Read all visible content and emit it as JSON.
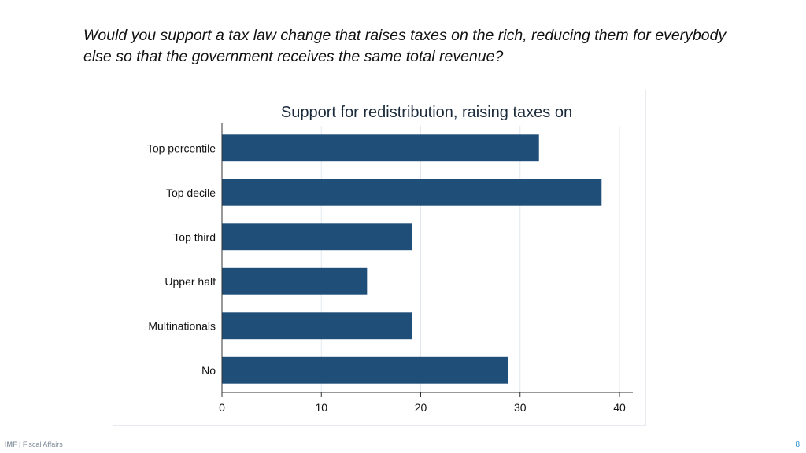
{
  "slide": {
    "question": "Would you support a tax law change that raises taxes on the rich, reducing them for everybody else so that the government receives the same total revenue?",
    "footer_brand": "IMF",
    "footer_separator": " | ",
    "footer_department": "Fiscal Affairs",
    "page_number": "8"
  },
  "colors": {
    "bar": "#1f4e79",
    "grid": "#e2e8ee",
    "axis": "#333333"
  },
  "chart_data": {
    "type": "bar",
    "orientation": "horizontal",
    "title": "Support for redistribution, raising taxes on",
    "categories": [
      "Top percentile",
      "Top decile",
      "Top third",
      "Upper half",
      "Multinationals",
      "No"
    ],
    "values": [
      31.9,
      38.2,
      19.1,
      14.6,
      19.1,
      28.8
    ],
    "xlim": [
      0,
      40
    ],
    "xticks": [
      0,
      10,
      20,
      30,
      40
    ],
    "xlabel": "",
    "ylabel": "",
    "grid": true,
    "legend": "none"
  }
}
